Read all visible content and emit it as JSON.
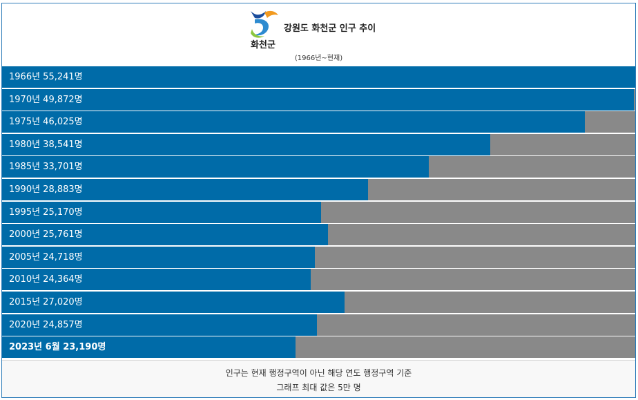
{
  "header": {
    "logo_label": "화천군",
    "title": "강원도 화천군 인구 추이",
    "subtitle": "(1966년~현재)"
  },
  "colors": {
    "bar": "#006ba8",
    "track": "#898989",
    "border": "#2a7ab8"
  },
  "chart_data": {
    "type": "bar",
    "orientation": "horizontal",
    "max": 50000,
    "categories": [
      "1966년",
      "1970년",
      "1975년",
      "1980년",
      "1985년",
      "1990년",
      "1995년",
      "2000년",
      "2005년",
      "2010년",
      "2015년",
      "2020년",
      "2023년 6월"
    ],
    "values": [
      55241,
      49872,
      46025,
      38541,
      33701,
      28883,
      25170,
      25761,
      24718,
      24364,
      27020,
      24857,
      23190
    ],
    "labels": [
      "1966년 55,241명",
      "1970년 49,872명",
      "1975년 46,025명",
      "1980년 38,541명",
      "1985년 33,701명",
      "1990년 28,883명",
      "1995년 25,170명",
      "2000년 25,761명",
      "2005년 24,718명",
      "2010년 24,364명",
      "2015년 27,020명",
      "2020년 24,857명",
      "2023년 6월 23,190명"
    ]
  },
  "footer": {
    "note1": "인구는 현재 행정구역이 아닌 해당 연도 행정구역 기준",
    "note2": "그래프 최대 값은 5만 명"
  }
}
